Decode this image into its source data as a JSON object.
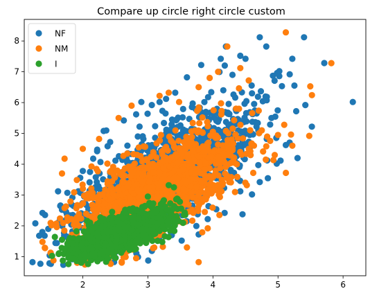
{
  "chart_data": {
    "type": "scatter",
    "title": "Compare up circle right circle custom",
    "xlabel": "",
    "ylabel": "",
    "xlim": [
      1.1,
      6.35
    ],
    "ylim": [
      0.38,
      8.7
    ],
    "xticks": [
      2,
      3,
      4,
      5,
      6
    ],
    "yticks": [
      1,
      2,
      3,
      4,
      5,
      6,
      7,
      8
    ],
    "grid": false,
    "legend": {
      "position": "top-left",
      "entries": [
        "NF",
        "NM",
        "I"
      ]
    },
    "series": [
      {
        "name": "NF",
        "color": "#1f77b4",
        "cloud": {
          "center": [
            3.25,
            3.55
          ],
          "spread": [
            0.7,
            1.1
          ],
          "correlation": 0.72,
          "count": 1400
        },
        "points": [
          [
            1.27,
            2.08
          ],
          [
            1.33,
            1.68
          ],
          [
            1.38,
            2.42
          ],
          [
            1.42,
            2.35
          ],
          [
            1.47,
            1.9
          ],
          [
            1.62,
            3.12
          ],
          [
            1.68,
            2.52
          ],
          [
            1.84,
            2.92
          ],
          [
            1.96,
            3.56
          ],
          [
            2.0,
            3.78
          ],
          [
            2.16,
            4.18
          ],
          [
            2.22,
            4.42
          ],
          [
            2.32,
            5.08
          ],
          [
            2.42,
            4.72
          ],
          [
            2.63,
            5.42
          ],
          [
            2.82,
            5.62
          ],
          [
            2.9,
            6.02
          ],
          [
            3.06,
            5.92
          ],
          [
            3.18,
            6.02
          ],
          [
            3.28,
            6.12
          ],
          [
            3.42,
            6.32
          ],
          [
            3.6,
            6.82
          ],
          [
            3.82,
            7.22
          ],
          [
            4.12,
            7.42
          ],
          [
            4.2,
            7.82
          ],
          [
            4.42,
            7.52
          ],
          [
            4.5,
            7.42
          ],
          [
            4.72,
            8.12
          ],
          [
            4.82,
            7.82
          ],
          [
            5.02,
            7.02
          ],
          [
            5.18,
            6.92
          ],
          [
            5.22,
            7.42
          ],
          [
            5.4,
            8.12
          ],
          [
            5.28,
            5.72
          ],
          [
            5.42,
            5.92
          ],
          [
            5.52,
            5.22
          ],
          [
            6.15,
            6.02
          ],
          [
            5.12,
            4.62
          ],
          [
            4.98,
            4.02
          ],
          [
            4.72,
            3.42
          ],
          [
            4.6,
            3.02
          ],
          [
            4.42,
            3.12
          ],
          [
            4.18,
            2.42
          ],
          [
            3.92,
            2.22
          ],
          [
            3.78,
            1.72
          ],
          [
            3.52,
            1.52
          ],
          [
            5.3,
            4.2
          ],
          [
            4.9,
            5.5
          ],
          [
            4.6,
            6.3
          ],
          [
            4.3,
            6.9
          ]
        ]
      },
      {
        "name": "NM",
        "color": "#ff7f0e",
        "cloud": {
          "center": [
            3.15,
            3.15
          ],
          "spread": [
            0.62,
            0.95
          ],
          "correlation": 0.7,
          "count": 1400
        },
        "points": [
          [
            1.38,
            1.48
          ],
          [
            1.42,
            1.28
          ],
          [
            1.52,
            2.02
          ],
          [
            1.68,
            3.7
          ],
          [
            1.72,
            4.18
          ],
          [
            1.72,
            2.58
          ],
          [
            1.82,
            2.22
          ],
          [
            2.0,
            4.5
          ],
          [
            2.25,
            4.82
          ],
          [
            2.55,
            5.5
          ],
          [
            2.75,
            5.9
          ],
          [
            3.18,
            6.22
          ],
          [
            3.32,
            6.32
          ],
          [
            3.48,
            6.02
          ],
          [
            3.78,
            6.5
          ],
          [
            4.08,
            7.0
          ],
          [
            4.22,
            7.82
          ],
          [
            4.42,
            7.12
          ],
          [
            4.55,
            6.72
          ],
          [
            5.12,
            8.28
          ],
          [
            5.82,
            7.28
          ],
          [
            5.48,
            4.92
          ],
          [
            5.0,
            4.95
          ],
          [
            5.22,
            4.6
          ],
          [
            4.82,
            4.58
          ],
          [
            4.62,
            3.72
          ],
          [
            4.52,
            3.32
          ],
          [
            4.1,
            2.35
          ],
          [
            3.92,
            1.92
          ],
          [
            3.78,
            0.82
          ],
          [
            3.6,
            1.3
          ],
          [
            2.82,
            0.95
          ],
          [
            2.4,
            0.88
          ],
          [
            1.9,
            1.1
          ],
          [
            4.75,
            5.1
          ],
          [
            4.4,
            5.8
          ],
          [
            4.95,
            4.3
          ],
          [
            3.95,
            6.8
          ]
        ]
      },
      {
        "name": "I",
        "color": "#2ca02c",
        "cloud": {
          "center": [
            2.55,
            1.72
          ],
          "spread": [
            0.36,
            0.36
          ],
          "correlation": 0.72,
          "count": 1600
        },
        "points": [
          [
            1.68,
            1.55
          ],
          [
            1.72,
            1.25
          ],
          [
            1.78,
            1.05
          ],
          [
            1.85,
            1.42
          ],
          [
            3.0,
            2.95
          ],
          [
            3.32,
            3.32
          ],
          [
            3.4,
            3.25
          ],
          [
            3.2,
            2.7
          ],
          [
            2.95,
            2.62
          ],
          [
            3.12,
            2.45
          ],
          [
            2.12,
            1.6
          ],
          [
            2.45,
            2.45
          ]
        ]
      }
    ]
  }
}
